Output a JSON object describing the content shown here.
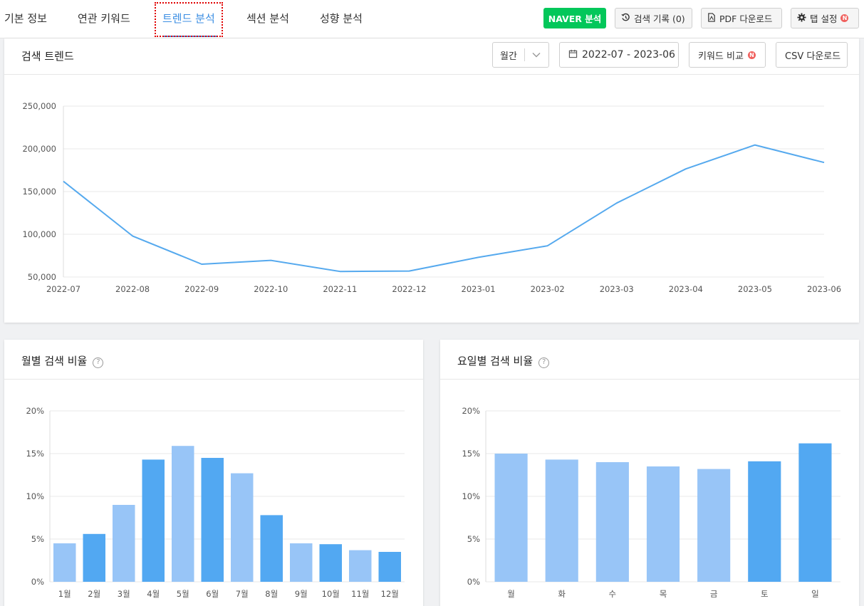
{
  "tabs": [
    {
      "label": "기본 정보",
      "active": false
    },
    {
      "label": "연관 키워드",
      "active": false
    },
    {
      "label": "트렌드 분석",
      "active": true
    },
    {
      "label": "섹션 분석",
      "active": false
    },
    {
      "label": "성향 분석",
      "active": false
    }
  ],
  "toolbar": {
    "naver_label": "NAVER 분석",
    "history_label": "검색 기록 (0)",
    "pdf_label": "PDF 다운로드",
    "settings_label": "탭 설정",
    "badge": "N"
  },
  "trend": {
    "title": "검색 트렌드",
    "period_select": "월간",
    "date_range": "2022-07 - 2023-06",
    "compare_label": "키워드 비교",
    "csv_label": "CSV 다운로드"
  },
  "monthly": {
    "title": "월별 검색 비율",
    "help": "?"
  },
  "weekday": {
    "title": "요일별 검색 비율",
    "help": "?"
  },
  "colors": {
    "accent": "#3b8ee3",
    "naver": "#03c75a",
    "line": "#55a9ee",
    "bar_dark": "#52a8f2",
    "bar_light": "#98c5f7",
    "badge": "#f0605d"
  },
  "chart_data": [
    {
      "type": "line",
      "title": "",
      "x": [
        "2022-07",
        "2022-08",
        "2022-09",
        "2022-10",
        "2022-11",
        "2022-12",
        "2023-01",
        "2023-02",
        "2023-03",
        "2023-04",
        "2023-05",
        "2023-06"
      ],
      "y_tick_labels": [
        "50,000",
        "100,000",
        "150,000",
        "200,000",
        "250,000"
      ],
      "ylim": [
        50000,
        250000
      ],
      "grid": true,
      "series": [
        {
          "values": [
            162000,
            98000,
            65000,
            69500,
            56500,
            57000,
            73000,
            86500,
            136500,
            176500,
            204500,
            184000
          ]
        }
      ]
    },
    {
      "type": "bar",
      "title": "월별 검색 비율",
      "categories": [
        "1월",
        "2월",
        "3월",
        "4월",
        "5월",
        "6월",
        "7월",
        "8월",
        "9월",
        "10월",
        "11월",
        "12월"
      ],
      "values": [
        4.5,
        5.6,
        9.0,
        14.3,
        15.9,
        14.5,
        12.7,
        7.8,
        4.5,
        4.4,
        3.7,
        3.5
      ],
      "highlight": [
        false,
        true,
        false,
        true,
        false,
        true,
        false,
        true,
        false,
        true,
        false,
        true
      ],
      "y_tick_labels": [
        "0%",
        "5%",
        "10%",
        "15%",
        "20%"
      ],
      "ylim": [
        0,
        20
      ],
      "grid": true
    },
    {
      "type": "bar",
      "title": "요일별 검색 비율",
      "categories": [
        "월",
        "화",
        "수",
        "목",
        "금",
        "토",
        "일"
      ],
      "values": [
        15.0,
        14.3,
        14.0,
        13.5,
        13.2,
        14.1,
        16.2
      ],
      "highlight": [
        false,
        false,
        false,
        false,
        false,
        true,
        true
      ],
      "y_tick_labels": [
        "0%",
        "5%",
        "10%",
        "15%",
        "20%"
      ],
      "ylim": [
        0,
        20
      ],
      "grid": true
    }
  ]
}
